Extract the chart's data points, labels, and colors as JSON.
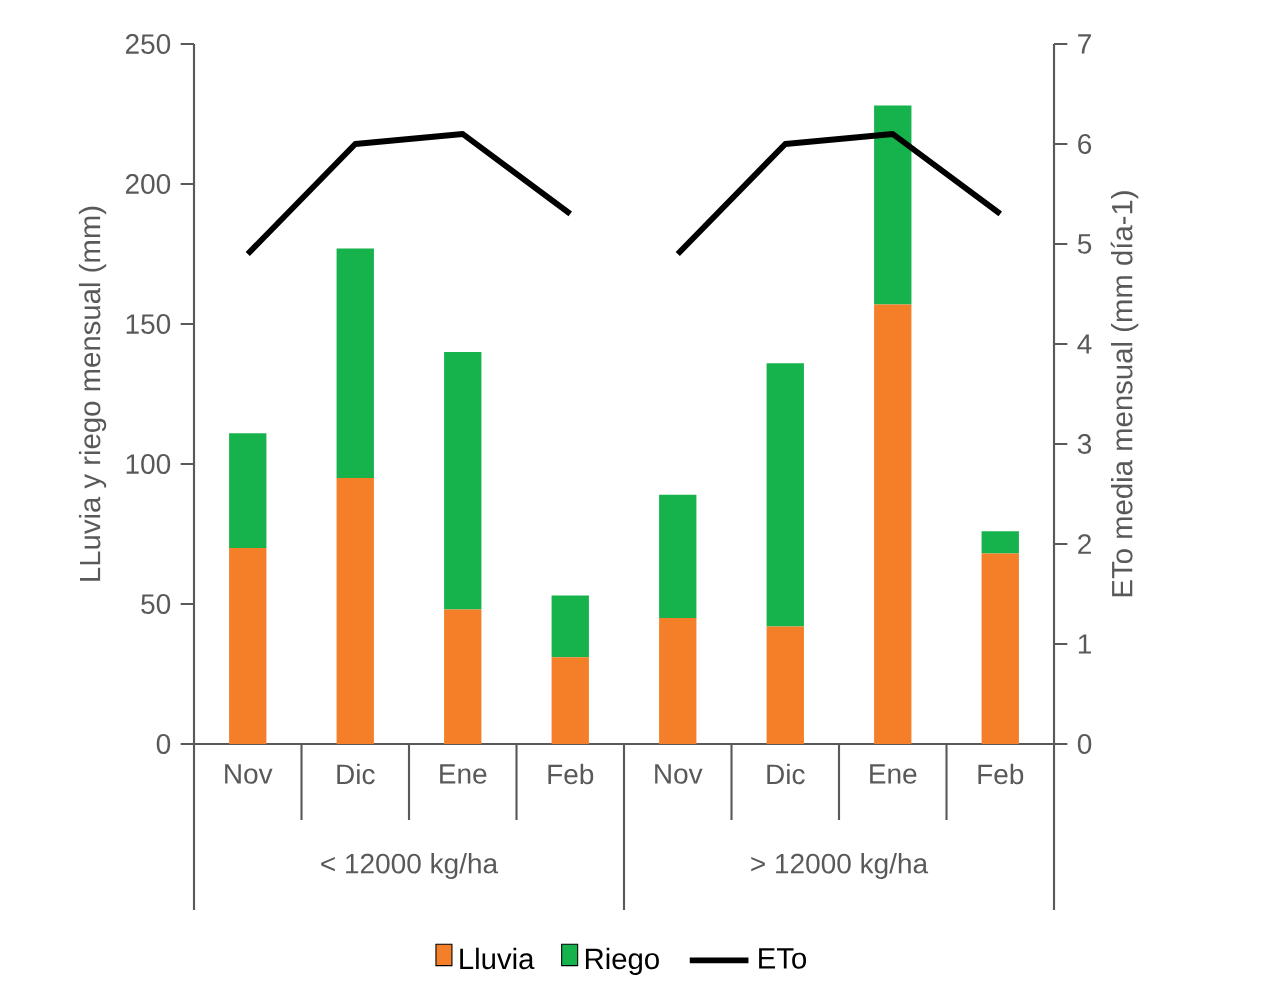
{
  "chart_data": {
    "type": "bar",
    "stacked": true,
    "ylabel": "LLuvia y riego mensual (mm)",
    "y2label": "ETo media mensual (mm día-1)",
    "categories": [
      "Nov",
      "Dic",
      "Ene",
      "Feb",
      "Nov",
      "Dic",
      "Ene",
      "Feb"
    ],
    "annotations": [
      "< 12000 kg/ha",
      "> 12000 kg/ha"
    ],
    "series": [
      {
        "name": "Lluvia",
        "color": "#f57f29",
        "values": [
          70,
          95,
          48,
          31,
          45,
          42,
          157,
          68
        ]
      },
      {
        "name": "Riego",
        "color": "#16b24b",
        "values": [
          41,
          82,
          92,
          22,
          44,
          94,
          71,
          8
        ]
      },
      {
        "name": "ETo",
        "type": "line",
        "axis": "y2",
        "color": "#000000",
        "values": [
          4.9,
          6.0,
          6.1,
          5.3,
          4.9,
          6.0,
          6.1,
          5.3
        ]
      }
    ],
    "ylim": [
      0,
      250
    ],
    "yticks": [
      0,
      50,
      100,
      150,
      200,
      250
    ],
    "y2lim": [
      0,
      7
    ],
    "y2ticks": [
      0,
      1,
      2,
      3,
      4,
      5,
      6,
      7
    ],
    "legend": "bottom",
    "grid": false
  }
}
